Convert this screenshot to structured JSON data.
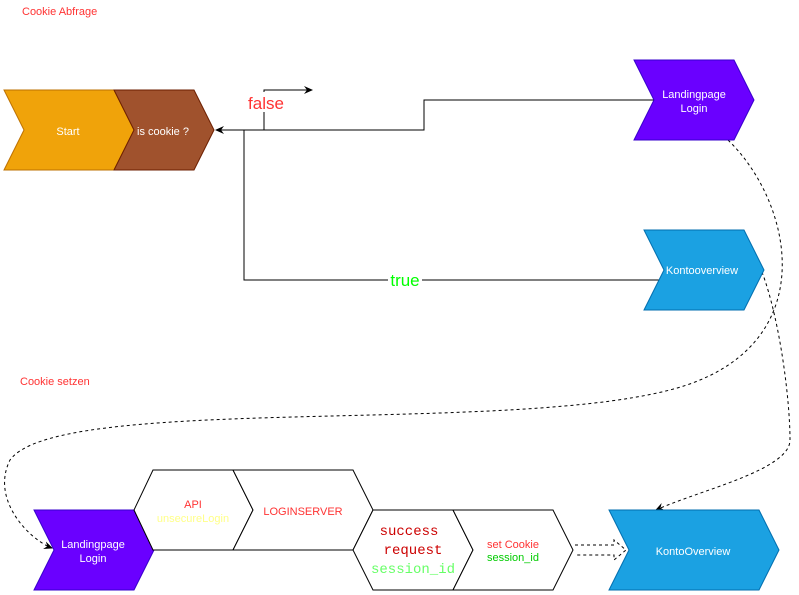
{
  "sections": {
    "query": "Cookie Abfrage",
    "set": "Cookie setzen"
  },
  "top": {
    "start": "Start",
    "is_cookie": "is cookie ?",
    "landing": [
      "Landingpage",
      "Login"
    ],
    "konto": "Kontooverview",
    "false_label": "false",
    "true_label": "true"
  },
  "bottom": {
    "landing": [
      "Landingpage",
      "Login"
    ],
    "api": [
      "API",
      "unsecureLogin"
    ],
    "loginserver": "LOGINSERVER",
    "success": [
      "success",
      "request",
      "session_id"
    ],
    "set_cookie": [
      "set Cookie",
      "session_id"
    ],
    "konto": "KontoOverview"
  },
  "colors": {
    "start": "#f0a30a",
    "is_cookie": "#a0522d",
    "landing": "#6a00ff",
    "konto": "#1ba1e2",
    "label_red": "#ff3333",
    "true_green": "#00ff00"
  }
}
